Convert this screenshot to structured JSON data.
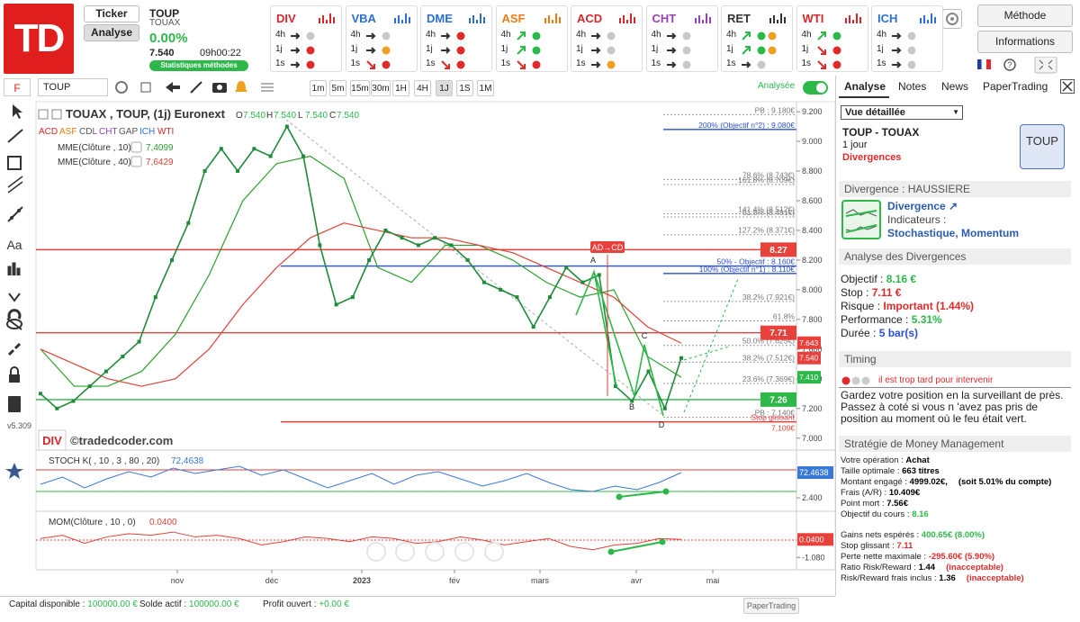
{
  "header": {
    "logo": "TD",
    "ticker_button": "Ticker",
    "analyse_button": "Analyse",
    "symbol": "TOUP",
    "name": "TOUAX",
    "change": "0.00%",
    "price": "7.540",
    "time": "09h00:22",
    "stats_button": "Statistiques méthodes",
    "method_button": "Méthode",
    "info_button": "Informations"
  },
  "indicators": [
    {
      "name": "DIV",
      "color": "#d9262b",
      "rows": [
        {
          "label": "4h",
          "arrow": "right",
          "dots": [
            "#c8c8c8"
          ]
        },
        {
          "label": "1j",
          "arrow": "right",
          "dots": [
            "#e02a2a"
          ]
        },
        {
          "label": "1s",
          "arrow": "right",
          "dots": [
            "#e02a2a"
          ]
        }
      ]
    },
    {
      "name": "VBA",
      "color": "#2a6fd6",
      "rows": [
        {
          "label": "4h",
          "arrow": "right",
          "dots": [
            "#c8c8c8"
          ]
        },
        {
          "label": "1j",
          "arrow": "right",
          "dots": [
            "#f0a020"
          ]
        },
        {
          "label": "1s",
          "arrow": "down",
          "dots": [
            "#e02a2a"
          ]
        }
      ]
    },
    {
      "name": "DME",
      "color": "#2a6fd6",
      "rows": [
        {
          "label": "4h",
          "arrow": "right",
          "dots": [
            "#e02a2a"
          ]
        },
        {
          "label": "1j",
          "arrow": "right",
          "dots": [
            "#e02a2a"
          ]
        },
        {
          "label": "1s",
          "arrow": "down",
          "dots": [
            "#e02a2a"
          ]
        }
      ]
    },
    {
      "name": "ASF",
      "color": "#f07a10",
      "rows": [
        {
          "label": "4h",
          "arrow": "up",
          "dots": [
            "#2db84a"
          ]
        },
        {
          "label": "1j",
          "arrow": "up",
          "dots": [
            "#2db84a"
          ]
        },
        {
          "label": "1s",
          "arrow": "down",
          "dots": [
            "#e02a2a"
          ]
        }
      ]
    },
    {
      "name": "ACD",
      "color": "#d9262b",
      "rows": [
        {
          "label": "4h",
          "arrow": "right",
          "dots": [
            "#c8c8c8"
          ]
        },
        {
          "label": "1j",
          "arrow": "right",
          "dots": [
            "#c8c8c8"
          ]
        },
        {
          "label": "1s",
          "arrow": "right",
          "dots": [
            "#f0a020"
          ]
        }
      ]
    },
    {
      "name": "CHT",
      "color": "#9b3fb5",
      "rows": [
        {
          "label": "4h",
          "arrow": "right",
          "dots": [
            "#c8c8c8"
          ]
        },
        {
          "label": "1j",
          "arrow": "right",
          "dots": [
            "#c8c8c8"
          ]
        },
        {
          "label": "1s",
          "arrow": "right",
          "dots": [
            "#c8c8c8"
          ]
        }
      ]
    },
    {
      "name": "RET",
      "color": "#333333",
      "rows": [
        {
          "label": "4h",
          "arrow": "up",
          "dots": [
            "#2db84a",
            "#f0a020"
          ]
        },
        {
          "label": "1j",
          "arrow": "up",
          "dots": [
            "#2db84a",
            "#f0a020"
          ]
        },
        {
          "label": "1s",
          "arrow": "right",
          "dots": [
            "#c8c8c8"
          ]
        }
      ]
    },
    {
      "name": "WTI",
      "color": "#d9262b",
      "rows": [
        {
          "label": "4h",
          "arrow": "up",
          "dots": [
            "#2db84a"
          ]
        },
        {
          "label": "1j",
          "arrow": "down",
          "dots": [
            "#e02a2a"
          ]
        },
        {
          "label": "1s",
          "arrow": "down",
          "dots": [
            "#e02a2a"
          ]
        }
      ]
    },
    {
      "name": "ICH",
      "color": "#2a6fd6",
      "rows": [
        {
          "label": "4h",
          "arrow": "right",
          "dots": [
            "#c8c8c8"
          ]
        },
        {
          "label": "1j",
          "arrow": "right",
          "dots": [
            "#c8c8c8"
          ]
        },
        {
          "label": "1s",
          "arrow": "right",
          "dots": [
            "#c8c8c8"
          ]
        }
      ]
    }
  ],
  "toolbar": {
    "menu": "F",
    "symbol": "TOUP",
    "timeframes": [
      "1m",
      "5m",
      "15m",
      "30m",
      "1H",
      "4H",
      "1J",
      "1S",
      "1M"
    ],
    "active": 6,
    "toggle": "Analysée"
  },
  "version": "v5.309",
  "chart": {
    "title": "TOUAX , TOUP, (1j) Euronext",
    "ohlc": [
      {
        "key": "O",
        "value": "7.540"
      },
      {
        "key": "H",
        "value": "7.540"
      },
      {
        "key": "L",
        "value": "7.540"
      },
      {
        "key": "C",
        "value": "7.540"
      }
    ],
    "studies": [
      "ACD",
      "ASF",
      "CDL",
      "CHT",
      "GAP",
      "ICH",
      "WTI"
    ],
    "ylim": [
      6.95,
      9.255
    ],
    "yticks": [
      {
        "value": 9.2,
        "label": "9.200"
      },
      {
        "value": 9.0,
        "label": "9.000"
      },
      {
        "value": 8.8,
        "label": "8.800"
      },
      {
        "value": 8.6,
        "label": "8.600"
      },
      {
        "value": 8.4,
        "label": "8.400"
      },
      {
        "value": 8.2,
        "label": "8.200"
      },
      {
        "value": 8.0,
        "label": "8.000"
      },
      {
        "value": 7.8,
        "label": "7.800"
      },
      {
        "value": 7.6,
        "label": "7.600"
      },
      {
        "value": 7.4,
        "label": "7.400"
      },
      {
        "value": 7.2,
        "label": "7.200"
      },
      {
        "value": 7.0,
        "label": "7.000"
      }
    ],
    "closes": [
      7.3,
      7.2,
      7.25,
      7.35,
      7.45,
      7.55,
      7.65,
      7.95,
      8.2,
      8.45,
      8.8,
      8.95,
      8.8,
      8.95,
      8.9,
      9.1,
      8.9,
      8.3,
      7.9,
      7.95,
      8.2,
      8.4,
      8.35,
      8.3,
      8.35,
      8.3,
      8.2,
      8.05,
      8.0,
      7.95,
      7.75,
      7.95,
      8.15,
      8.05,
      8.1,
      7.35,
      7.25,
      7.45,
      7.2,
      7.54
    ],
    "close_color": "#1f8a3a",
    "ma": [
      {
        "name": "MME(Clôture , 10)",
        "value": "7,4099",
        "color": "#2ca02c",
        "values": [
          7.6,
          7.35,
          7.35,
          7.45,
          7.7,
          8.1,
          8.6,
          8.85,
          8.9,
          8.75,
          8.15,
          8.05,
          8.3,
          8.3,
          8.2,
          8.05,
          7.95,
          8.0,
          7.55,
          7.41
        ]
      },
      {
        "name": "MME(Clôture , 40)",
        "value": "7,6429",
        "color": "#e0413a",
        "values": [
          7.6,
          7.5,
          7.4,
          7.35,
          7.4,
          7.6,
          7.9,
          8.15,
          8.35,
          8.45,
          8.4,
          8.35,
          8.35,
          8.3,
          8.25,
          8.15,
          8.05,
          7.95,
          7.75,
          7.64
        ]
      }
    ],
    "levels": [
      {
        "label": "PB : 9.180€",
        "value": 9.18,
        "color": "#999999",
        "style": "dotted",
        "scope": "right"
      },
      {
        "label": "200% (Objectif n°2) : 9.080€",
        "value": 9.08,
        "color": "#2a4fd6",
        "style": "solid",
        "scope": "right"
      },
      {
        "label": "78.6% (8.743€)",
        "value": 8.743,
        "color": "#999999",
        "style": "dotted",
        "scope": "right"
      },
      {
        "label": "161.8% (8.709€)",
        "value": 8.709,
        "color": "#999999",
        "style": "dotted",
        "scope": "right"
      },
      {
        "label": "141.4% (8.512€)",
        "value": 8.512,
        "color": "#999999",
        "style": "dotted",
        "scope": "right"
      },
      {
        "label": "61.8% (8.491€)",
        "value": 8.491,
        "color": "#999999",
        "style": "dotted",
        "scope": "right"
      },
      {
        "label": "127.2% (8.371€)",
        "value": 8.371,
        "color": "#999999",
        "style": "dotted",
        "scope": "right"
      },
      {
        "label": "50% - Objectif : 8.160€",
        "value": 8.16,
        "color": "#2a4fd6",
        "style": "solid",
        "scope": "wide"
      },
      {
        "label": "100% (Objectif n°1) : 8.110€",
        "value": 8.11,
        "color": "#2a4fd6",
        "style": "solid",
        "scope": "right"
      },
      {
        "label": "38.2% (7.921€)",
        "value": 7.921,
        "color": "#999999",
        "style": "dotted",
        "scope": "right"
      },
      {
        "label": "61.8%",
        "value": 7.79,
        "color": "#999999",
        "style": "dotted",
        "scope": "right"
      },
      {
        "label": "50.0% (7.625€)",
        "value": 7.625,
        "color": "#999999",
        "style": "dotted",
        "scope": "right"
      },
      {
        "label": "38.2% (7.512€)",
        "value": 7.512,
        "color": "#999999",
        "style": "dotted",
        "scope": "right"
      },
      {
        "label": "23.6% (7.369€)",
        "value": 7.369,
        "color": "#999999",
        "style": "dotted",
        "scope": "right"
      },
      {
        "label": "PB : 7.140€",
        "value": 7.14,
        "color": "#999999",
        "style": "dotted",
        "scope": "right"
      },
      {
        "label": "Stop glissant",
        "value": 7.11,
        "color": "#e0413a",
        "style": "solid",
        "scope": "wide"
      }
    ],
    "stop_value": "7,109€",
    "lines": [
      {
        "value": 8.27,
        "label": "8.27",
        "color": "#e8413b"
      },
      {
        "value": 7.71,
        "label": "7.71",
        "color": "#e8413b"
      },
      {
        "value": 7.26,
        "label": "7.26",
        "color": "#2db84a"
      }
    ],
    "axis_badges": [
      {
        "value": 7.643,
        "label": "7.643",
        "color": "#e8413b"
      },
      {
        "value": 7.54,
        "label": "7.540",
        "color": "#e8413b"
      },
      {
        "value": 7.41,
        "label": "7.410",
        "color": "#2db84a"
      }
    ],
    "pattern": {
      "name": "AD→CD",
      "points": [
        "A",
        "B",
        "C",
        "D"
      ]
    },
    "div_badge": "DIV",
    "watermark": "©tradedcoder.com",
    "xlabels": [
      "nov",
      "déc",
      "2023",
      "fév",
      "mars",
      "avr",
      "mai"
    ],
    "stoch": {
      "name": "STOCH K( , 10 , 3 , 80 , 20)",
      "value": "72,4638",
      "color": "#3a78d8",
      "ylim": [
        -22.5,
        117.5
      ],
      "yticks": [
        {
          "value": 2.4,
          "label": "2.400"
        }
      ],
      "bands": [
        80,
        20
      ],
      "badge": 72.4638,
      "values": [
        40,
        60,
        30,
        55,
        75,
        60,
        85,
        70,
        80,
        90,
        65,
        80,
        55,
        30,
        50,
        70,
        40,
        65,
        75,
        55,
        35,
        50,
        70,
        45,
        25,
        20,
        35,
        25,
        45,
        72.4638
      ]
    },
    "mom": {
      "name": "MOM(Clôture , 10 , 0)",
      "value": "0.0400",
      "color": "#e0413a",
      "ylim": [
        -1.68,
        1.4
      ],
      "yticks": [
        {
          "value": -1.08,
          "label": "-1.080"
        }
      ],
      "badge": {
        "value": 0.04,
        "label": "0.0400"
      },
      "values": [
        0.1,
        0.3,
        -0.2,
        0.2,
        0.4,
        0.3,
        0.5,
        0.2,
        0.3,
        0.1,
        -0.3,
        -0.1,
        0.2,
        0.1,
        -0.1,
        0.2,
        0.1,
        -0.2,
        -0.1,
        0.2,
        0.0,
        -0.3,
        -0.1,
        0.1,
        -0.4,
        -0.6,
        -0.3,
        -0.2,
        0.1,
        0.04
      ]
    }
  },
  "panel": {
    "tabs": [
      "Analyse",
      "Notes",
      "News",
      "PaperTrading"
    ],
    "view": "Vue détaillée",
    "title": "TOUP - TOUAX",
    "period": "1 jour",
    "method": "Divergences",
    "badge": "TOUP",
    "divergence_header": "Divergence : HAUSSIERE",
    "divergence": "Divergence ↗",
    "indicators_label": "Indicateurs :",
    "indicators": "Stochastique, Momentum",
    "analysis_header": "Analyse des Divergences",
    "analysis": [
      {
        "label": "Objectif : ",
        "value": "8.16 €",
        "color": "#2db84a"
      },
      {
        "label": "Stop : ",
        "value": "7.11 €",
        "color": "#e02a2a"
      },
      {
        "label": "Risque : ",
        "value": "Important (1.44%)",
        "color": "#e02a2a"
      },
      {
        "label": "Performance : ",
        "value": "5.31%",
        "color": "#2db84a"
      },
      {
        "label": "Durée : ",
        "value": "5 bar(s)",
        "color": "#2a4fd6"
      }
    ],
    "timing_header": "Timing",
    "timing": "il est trop tard pour intervenir",
    "advice": "Gardez votre position en la surveillant de près. Passez à coté si vous n 'avez pas pris de position au moment où le feu était vert.",
    "mm_header": "Stratégie de Money Management",
    "mm": [
      {
        "label": "Votre opération : ",
        "value": "Achat",
        "color": "#000000"
      },
      {
        "label": "Taille optimale : ",
        "value": "663 titres",
        "color": "#000000"
      },
      {
        "label": "Montant engagé : ",
        "value": "4999.02€,",
        "color": "#000000",
        "note": "(soit 5.01% du compte)",
        "note_color": "#000000"
      },
      {
        "label": "Frais (A/R) : ",
        "value": "10.409€",
        "color": "#000000"
      },
      {
        "label": "Point mort : ",
        "value": "7.56€",
        "color": "#000000"
      },
      {
        "label": "Objectif du cours : ",
        "value": "8.16",
        "color": "#2db84a"
      },
      {
        "label": "Gains nets espérés : ",
        "value": "400.65€ (8.00%)",
        "color": "#2db84a"
      },
      {
        "label": "Stop glissant : ",
        "value": "7.11",
        "color": "#e02a2a"
      },
      {
        "label": "Perte nette maximale : ",
        "value": "-295.60€ (5.90%)",
        "color": "#e02a2a"
      },
      {
        "label": "Ratio Risk/Reward : ",
        "value": "1.44",
        "color": "#000000",
        "note": "(inacceptable)",
        "note_color": "#e02a2a"
      },
      {
        "label": "Risk/Reward frais inclus : ",
        "value": "1.36",
        "color": "#000000",
        "note": "(inacceptable)",
        "note_color": "#e02a2a"
      }
    ]
  },
  "footer": [
    {
      "label": "Capital disponible : ",
      "value": "100000.00 €"
    },
    {
      "label": "Solde actif : ",
      "value": "100000.00 €"
    },
    {
      "label": "Profit ouvert : ",
      "value": "+0.00 €"
    }
  ],
  "footer_button": "PaperTrading"
}
